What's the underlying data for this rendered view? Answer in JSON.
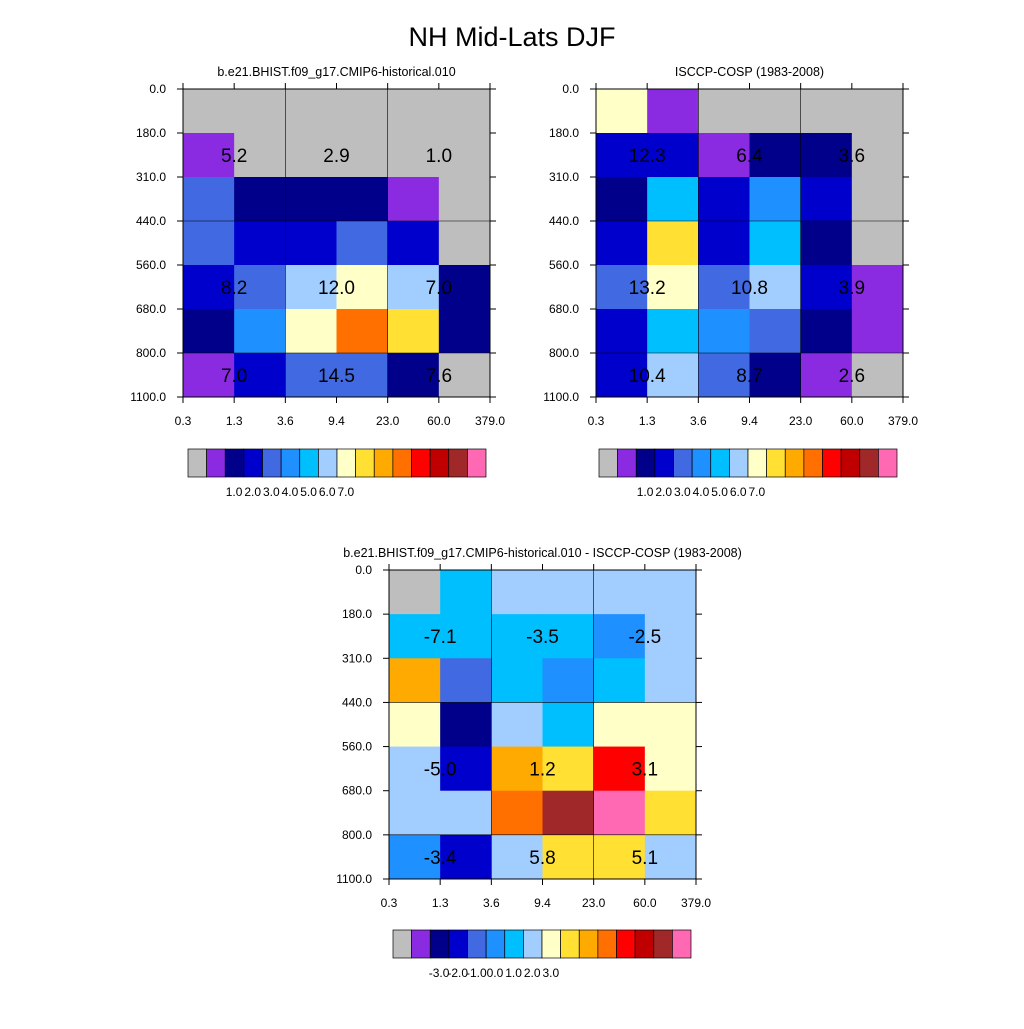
{
  "figure": {
    "title": "NH Mid-Lats DJF"
  },
  "chart_data": [
    {
      "type": "heatmap",
      "title": "b.e21.BHIST.f09_g17.CMIP6-historical.010",
      "x_ticks": [
        "0.3",
        "1.3",
        "3.6",
        "9.4",
        "23.0",
        "60.0",
        "379.0"
      ],
      "y_ticks": [
        "0.0",
        "180.0",
        "310.0",
        "440.0",
        "560.0",
        "680.0",
        "800.0",
        "1100.0"
      ],
      "cell_colors": [
        [
          "#bebebe",
          "#bebebe",
          "#bebebe",
          "#bebebe",
          "#bebebe",
          "#bebebe"
        ],
        [
          "#8a2be2",
          "#bebebe",
          "#bebebe",
          "#bebebe",
          "#bebebe",
          "#bebebe"
        ],
        [
          "#4169e1",
          "#00008b",
          "#00008b",
          "#00008b",
          "#8a2be2",
          "#bebebe"
        ],
        [
          "#4169e1",
          "#0000cd",
          "#0000cd",
          "#4169e1",
          "#0000cd",
          "#bebebe"
        ],
        [
          "#0000cd",
          "#4169e1",
          "#a2cdff",
          "#ffffc8",
          "#a2cdff",
          "#00008b"
        ],
        [
          "#00008b",
          "#1e90ff",
          "#ffffc8",
          "#ff7000",
          "#ffe033",
          "#00008b"
        ],
        [
          "#8a2be2",
          "#0000cd",
          "#4169e1",
          "#4169e1",
          "#00008b",
          "#bebebe"
        ]
      ],
      "annotations": [
        {
          "text": "5.2",
          "row": 1,
          "col": 0.5
        },
        {
          "text": "2.9",
          "row": 1,
          "col": 2.5
        },
        {
          "text": "1.0",
          "row": 1,
          "col": 4.5
        },
        {
          "text": "8.2",
          "row": 4,
          "col": 0.5
        },
        {
          "text": "12.0",
          "row": 4,
          "col": 2.5
        },
        {
          "text": "7.0",
          "row": 4,
          "col": 4.5
        },
        {
          "text": "7.0",
          "row": 6,
          "col": 0.5
        },
        {
          "text": "14.5",
          "row": 6,
          "col": 2.5
        },
        {
          "text": "7.6",
          "row": 6,
          "col": 4.5
        }
      ],
      "colorbar": {
        "colors": [
          "#bebebe",
          "#8a2be2",
          "#00008b",
          "#0000cd",
          "#4169e1",
          "#1e90ff",
          "#00bfff",
          "#a2cdff",
          "#ffffc8",
          "#ffe033",
          "#ffaa00",
          "#ff7000",
          "#ff0000",
          "#c00000",
          "#a02828",
          "#ff69b4"
        ],
        "labels": [
          "1.0",
          "2.0",
          "3.0",
          "4.0",
          "5.0",
          "6.0",
          "7.0"
        ],
        "label_start": 2
      }
    },
    {
      "type": "heatmap",
      "title": "ISCCP-COSP (1983-2008)",
      "x_ticks": [
        "0.3",
        "1.3",
        "3.6",
        "9.4",
        "23.0",
        "60.0",
        "379.0"
      ],
      "y_ticks": [
        "0.0",
        "180.0",
        "310.0",
        "440.0",
        "560.0",
        "680.0",
        "800.0",
        "1100.0"
      ],
      "cell_colors": [
        [
          "#ffffc8",
          "#8a2be2",
          "#bebebe",
          "#bebebe",
          "#bebebe",
          "#bebebe"
        ],
        [
          "#0000cd",
          "#0000cd",
          "#8a2be2",
          "#00008b",
          "#00008b",
          "#bebebe"
        ],
        [
          "#00008b",
          "#00bfff",
          "#0000cd",
          "#1e90ff",
          "#0000cd",
          "#bebebe"
        ],
        [
          "#0000cd",
          "#ffe033",
          "#0000cd",
          "#00bfff",
          "#00008b",
          "#bebebe"
        ],
        [
          "#4169e1",
          "#ffffc8",
          "#4169e1",
          "#a2cdff",
          "#0000cd",
          "#8a2be2"
        ],
        [
          "#0000cd",
          "#00bfff",
          "#1e90ff",
          "#4169e1",
          "#00008b",
          "#8a2be2"
        ],
        [
          "#0000cd",
          "#a2cdff",
          "#4169e1",
          "#00008b",
          "#8a2be2",
          "#bebebe"
        ]
      ],
      "annotations": [
        {
          "text": "12.3",
          "row": 1,
          "col": 0.5
        },
        {
          "text": "6.4",
          "row": 1,
          "col": 2.5
        },
        {
          "text": "3.6",
          "row": 1,
          "col": 4.5
        },
        {
          "text": "13.2",
          "row": 4,
          "col": 0.5
        },
        {
          "text": "10.8",
          "row": 4,
          "col": 2.5
        },
        {
          "text": "3.9",
          "row": 4,
          "col": 4.5
        },
        {
          "text": "10.4",
          "row": 6,
          "col": 0.5
        },
        {
          "text": "8.7",
          "row": 6,
          "col": 2.5
        },
        {
          "text": "2.6",
          "row": 6,
          "col": 4.5
        }
      ],
      "colorbar": {
        "colors": [
          "#bebebe",
          "#8a2be2",
          "#00008b",
          "#0000cd",
          "#4169e1",
          "#1e90ff",
          "#00bfff",
          "#a2cdff",
          "#ffffc8",
          "#ffe033",
          "#ffaa00",
          "#ff7000",
          "#ff0000",
          "#c00000",
          "#a02828",
          "#ff69b4"
        ],
        "labels": [
          "1.0",
          "2.0",
          "3.0",
          "4.0",
          "5.0",
          "6.0",
          "7.0"
        ],
        "label_start": 2
      }
    },
    {
      "type": "heatmap",
      "title": "b.e21.BHIST.f09_g17.CMIP6-historical.010 - ISCCP-COSP (1983-2008)",
      "x_ticks": [
        "0.3",
        "1.3",
        "3.6",
        "9.4",
        "23.0",
        "60.0",
        "379.0"
      ],
      "y_ticks": [
        "0.0",
        "180.0",
        "310.0",
        "440.0",
        "560.0",
        "680.0",
        "800.0",
        "1100.0"
      ],
      "cell_colors": [
        [
          "#bebebe",
          "#00bfff",
          "#a2cdff",
          "#a2cdff",
          "#a2cdff",
          "#a2cdff"
        ],
        [
          "#00bfff",
          "#00bfff",
          "#00bfff",
          "#00bfff",
          "#1e90ff",
          "#a2cdff"
        ],
        [
          "#ffaa00",
          "#4169e1",
          "#00bfff",
          "#1e90ff",
          "#00bfff",
          "#a2cdff"
        ],
        [
          "#ffffc8",
          "#00008b",
          "#a2cdff",
          "#00bfff",
          "#ffffc8",
          "#ffffc8"
        ],
        [
          "#a2cdff",
          "#0000cd",
          "#ffaa00",
          "#ffe033",
          "#ff0000",
          "#ffffc8"
        ],
        [
          "#a2cdff",
          "#a2cdff",
          "#ff7000",
          "#a02828",
          "#ff69b4",
          "#ffe033"
        ],
        [
          "#1e90ff",
          "#0000cd",
          "#a2cdff",
          "#ffe033",
          "#ffe033",
          "#a2cdff"
        ]
      ],
      "annotations": [
        {
          "text": "-7.1",
          "row": 1,
          "col": 0.5
        },
        {
          "text": "-3.5",
          "row": 1,
          "col": 2.5
        },
        {
          "text": "-2.5",
          "row": 1,
          "col": 4.5
        },
        {
          "text": "-5.0",
          "row": 4,
          "col": 0.5
        },
        {
          "text": "1.2",
          "row": 4,
          "col": 2.5
        },
        {
          "text": "3.1",
          "row": 4,
          "col": 4.5
        },
        {
          "text": "-3.4",
          "row": 6,
          "col": 0.5
        },
        {
          "text": "5.8",
          "row": 6,
          "col": 2.5
        },
        {
          "text": "5.1",
          "row": 6,
          "col": 4.5
        }
      ],
      "colorbar": {
        "colors": [
          "#bebebe",
          "#8a2be2",
          "#00008b",
          "#0000cd",
          "#4169e1",
          "#1e90ff",
          "#00bfff",
          "#a2cdff",
          "#ffffc8",
          "#ffe033",
          "#ffaa00",
          "#ff7000",
          "#ff0000",
          "#c00000",
          "#a02828",
          "#ff69b4"
        ],
        "labels": [
          "-3.0",
          "-2.0",
          "-1.0",
          "0.0",
          "1.0",
          "2.0",
          "3.0"
        ],
        "label_start": 2
      }
    }
  ]
}
